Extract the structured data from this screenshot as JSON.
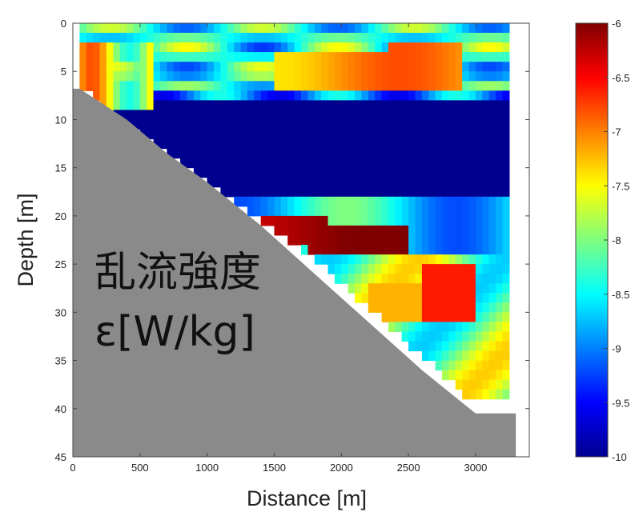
{
  "chart_data": {
    "type": "heatmap",
    "title": "",
    "xlabel": "Distance [m]",
    "ylabel": "Depth [m]",
    "xlim": [
      0,
      3400
    ],
    "ylim": [
      45,
      0
    ],
    "x_ticks": [
      "0",
      "500",
      "1000",
      "1500",
      "2000",
      "2500",
      "3000"
    ],
    "y_ticks": [
      "0",
      "5",
      "10",
      "15",
      "20",
      "25",
      "30",
      "35",
      "40",
      "45"
    ],
    "colorbar": {
      "range": [
        -10,
        -6
      ],
      "ticks": [
        "-6",
        "-6.5",
        "-7",
        "-7.5",
        "-8",
        "-8.5",
        "-9",
        "-9.5",
        "-10"
      ],
      "colormap": "jet"
    },
    "overlay_text": [
      "乱流強度",
      "ε[W/kg]"
    ],
    "bottom_color": "#8a8a8a",
    "seafloor": [
      [
        50,
        6.8
      ],
      [
        400,
        10
      ],
      [
        700,
        13.5
      ],
      [
        1000,
        16.5
      ],
      [
        1400,
        21
      ],
      [
        1800,
        26
      ],
      [
        2200,
        31
      ],
      [
        2600,
        36
      ],
      [
        3000,
        40.5
      ],
      [
        3300,
        40.5
      ]
    ],
    "data_edge": [
      [
        50,
        6
      ],
      [
        300,
        9
      ],
      [
        600,
        12
      ],
      [
        1000,
        16
      ],
      [
        1400,
        20
      ],
      [
        1800,
        24
      ],
      [
        2200,
        29
      ],
      [
        2600,
        34
      ],
      [
        2900,
        38
      ],
      [
        3250,
        39
      ]
    ],
    "data_right_edge_x": 3250,
    "layers": [
      {
        "name": "surface-variable",
        "depth": [
          0,
          7
        ],
        "value": -8.4
      },
      {
        "name": "upper-high",
        "depth": [
          2,
          6
        ],
        "x": [
          1500,
          2800
        ],
        "value": -7.0
      },
      {
        "name": "middle-low",
        "depth": [
          7,
          18
        ],
        "value": -10.0
      },
      {
        "name": "lower-high",
        "depth": [
          19,
          23
        ],
        "x": [
          1400,
          2400
        ],
        "value": -6.3
      },
      {
        "name": "deep-mixed",
        "depth": [
          23,
          38
        ],
        "value": -7.9
      }
    ]
  }
}
